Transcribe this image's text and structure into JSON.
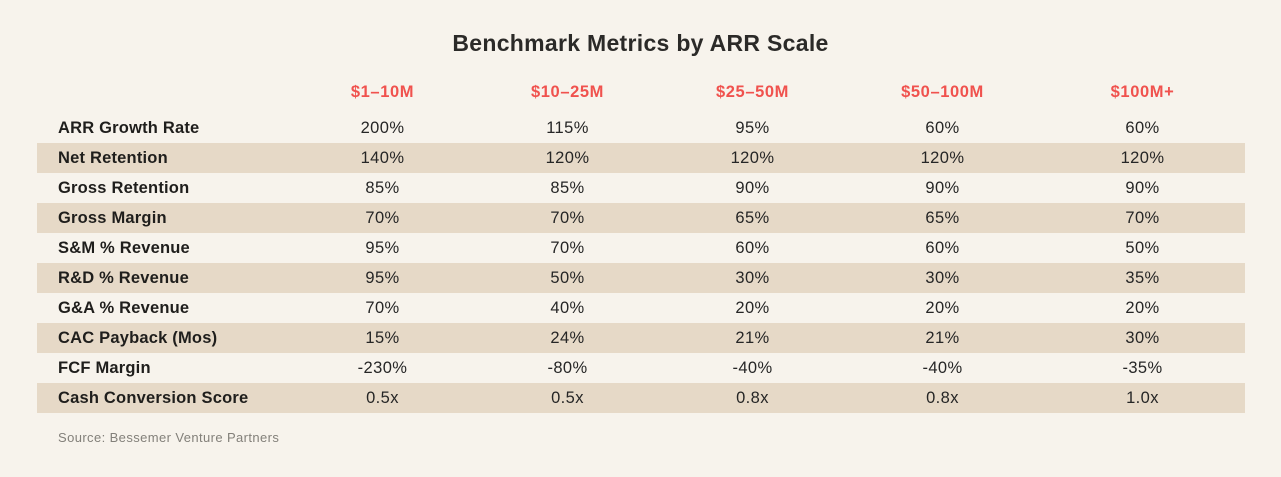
{
  "title": "Benchmark Metrics by ARR Scale",
  "source": "Source: Bessemer Venture Partners",
  "colors": {
    "background": "#f7f3ec",
    "row_stripe": "#e6d9c7",
    "column_header_red": "#f0524e",
    "text_dark": "#262626",
    "source_gray": "#83807a"
  },
  "chart_data": {
    "type": "table",
    "title": "Benchmark Metrics by ARR Scale",
    "columns": [
      "$1–10M",
      "$10–25M",
      "$25–50M",
      "$50–100M",
      "$100M+"
    ],
    "rows": [
      {
        "label": "ARR Growth Rate",
        "values": [
          "200%",
          "115%",
          "95%",
          "60%",
          "60%"
        ]
      },
      {
        "label": "Net Retention",
        "values": [
          "140%",
          "120%",
          "120%",
          "120%",
          "120%"
        ]
      },
      {
        "label": "Gross Retention",
        "values": [
          "85%",
          "85%",
          "90%",
          "90%",
          "90%"
        ]
      },
      {
        "label": "Gross Margin",
        "values": [
          "70%",
          "70%",
          "65%",
          "65%",
          "70%"
        ]
      },
      {
        "label": "S&M % Revenue",
        "values": [
          "95%",
          "70%",
          "60%",
          "60%",
          "50%"
        ]
      },
      {
        "label": "R&D % Revenue",
        "values": [
          "95%",
          "50%",
          "30%",
          "30%",
          "35%"
        ]
      },
      {
        "label": "G&A % Revenue",
        "values": [
          "70%",
          "40%",
          "20%",
          "20%",
          "20%"
        ]
      },
      {
        "label": "CAC Payback (Mos)",
        "values": [
          "15%",
          "24%",
          "21%",
          "21%",
          "30%"
        ]
      },
      {
        "label": "FCF Margin",
        "values": [
          "-230%",
          "-80%",
          "-40%",
          "-40%",
          "-35%"
        ]
      },
      {
        "label": "Cash Conversion Score",
        "values": [
          "0.5x",
          "0.5x",
          "0.8x",
          "0.8x",
          "1.0x"
        ]
      }
    ],
    "source": "Source: Bessemer Venture Partners",
    "layout": {
      "striped_rows": "even rows (Net Retention, Gross Margin, R&D % Revenue, CAC Payback (Mos), Cash Conversion Score)",
      "legend_position": "none",
      "grid": "off"
    }
  }
}
